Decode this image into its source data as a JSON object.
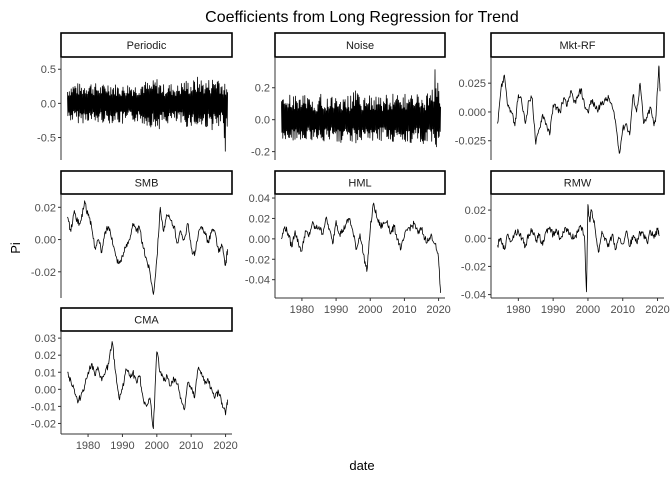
{
  "title": "Coefficients from Long Regression for Trend",
  "xlabel": "date",
  "ylabel": "Pi",
  "colors": {
    "line": "#000000",
    "axis": "#333333",
    "strip_border": "#000000",
    "background": "#ffffff"
  },
  "chart_data": {
    "type": "line",
    "facet": "wrap",
    "facet_cols": 3,
    "grid": false,
    "x_range": [
      1973,
      2021
    ],
    "x_ticks": [
      "1980",
      "1990",
      "2000",
      "2010",
      "2020"
    ],
    "panels": [
      {
        "name": "Periodic",
        "ylim": [
          -0.8,
          0.65
        ],
        "y_ticks": [
          "-0.5",
          "0.0",
          "0.5"
        ],
        "y_tick_values": [
          -0.5,
          0.0,
          0.5
        ],
        "x_axis_shown": false,
        "series": {
          "x": [
            1974,
            1976,
            1978,
            1980,
            1982,
            1984,
            1986,
            1988,
            1990,
            1992,
            1994,
            1996,
            1998,
            2000,
            2002,
            2004,
            2006,
            2008,
            2010,
            2012,
            2014,
            2016,
            2018,
            2019,
            2020,
            2020.6
          ],
          "high": [
            0.25,
            0.32,
            0.28,
            0.34,
            0.3,
            0.27,
            0.33,
            0.29,
            0.26,
            0.31,
            0.28,
            0.35,
            0.3,
            0.38,
            0.28,
            0.3,
            0.27,
            0.36,
            0.32,
            0.4,
            0.34,
            0.38,
            0.45,
            0.32,
            0.28,
            0.18
          ],
          "low": [
            -0.25,
            -0.28,
            -0.3,
            -0.26,
            -0.32,
            -0.28,
            -0.3,
            -0.27,
            -0.33,
            -0.29,
            -0.27,
            -0.31,
            -0.34,
            -0.4,
            -0.33,
            -0.29,
            -0.31,
            -0.36,
            -0.33,
            -0.38,
            -0.35,
            -0.39,
            -0.42,
            -0.36,
            -0.8,
            -0.2
          ]
        }
      },
      {
        "name": "Noise",
        "ylim": [
          -0.24,
          0.38
        ],
        "y_ticks": [
          "-0.2",
          "0.0",
          "0.2"
        ],
        "y_tick_values": [
          -0.2,
          0.0,
          0.2
        ],
        "x_axis_shown": false,
        "series": {
          "x": [
            1974,
            1976,
            1978,
            1980,
            1982,
            1984,
            1986,
            1988,
            1990,
            1992,
            1994,
            1996,
            1998,
            2000,
            2002,
            2004,
            2006,
            2008,
            2010,
            2012,
            2014,
            2016,
            2018,
            2019,
            2020,
            2020.6
          ],
          "high": [
            0.14,
            0.16,
            0.15,
            0.18,
            0.14,
            0.13,
            0.17,
            0.15,
            0.16,
            0.14,
            0.15,
            0.19,
            0.15,
            0.16,
            0.14,
            0.15,
            0.16,
            0.18,
            0.16,
            0.15,
            0.17,
            0.16,
            0.18,
            0.35,
            0.2,
            0.12
          ],
          "low": [
            -0.12,
            -0.14,
            -0.13,
            -0.15,
            -0.12,
            -0.14,
            -0.16,
            -0.13,
            -0.14,
            -0.15,
            -0.13,
            -0.15,
            -0.14,
            -0.17,
            -0.14,
            -0.13,
            -0.15,
            -0.16,
            -0.14,
            -0.15,
            -0.14,
            -0.16,
            -0.17,
            -0.15,
            -0.22,
            -0.1
          ]
        }
      },
      {
        "name": "Mkt-RF",
        "ylim": [
          -0.04,
          0.046
        ],
        "y_ticks": [
          "-0.025",
          "0.000",
          "0.025"
        ],
        "y_tick_values": [
          -0.025,
          0.0,
          0.025
        ],
        "x_axis_shown": false,
        "series": {
          "x": [
            1974,
            1975,
            1976,
            1977,
            1978,
            1979,
            1980,
            1981,
            1982,
            1983,
            1984,
            1985,
            1986,
            1987,
            1988,
            1989,
            1990,
            1991,
            1992,
            1993,
            1994,
            1995,
            1996,
            1997,
            1998,
            1999,
            2000,
            2001,
            2002,
            2003,
            2004,
            2005,
            2006,
            2007,
            2008,
            2009,
            2010,
            2011,
            2012,
            2013,
            2014,
            2015,
            2016,
            2017,
            2018,
            2019,
            2019.5,
            2020,
            2020.4,
            2020.7
          ],
          "y": [
            -0.01,
            0.02,
            0.032,
            0.005,
            0.0,
            -0.012,
            0.015,
            0.008,
            -0.01,
            0.01,
            0.012,
            -0.028,
            -0.015,
            -0.002,
            -0.01,
            -0.02,
            0.006,
            0.004,
            0.0,
            0.012,
            0.005,
            0.018,
            0.008,
            0.012,
            0.02,
            0.006,
            0.0,
            0.01,
            0.005,
            0.002,
            0.008,
            0.01,
            0.012,
            0.004,
            -0.01,
            -0.036,
            -0.015,
            -0.01,
            -0.02,
            0.015,
            0.0,
            0.025,
            -0.01,
            -0.005,
            0.004,
            -0.012,
            -0.005,
            0.02,
            0.04,
            0.018
          ]
        }
      },
      {
        "name": "SMB",
        "ylim": [
          -0.035,
          0.027
        ],
        "y_ticks": [
          "-0.02",
          "0.00",
          "0.02"
        ],
        "y_tick_values": [
          -0.02,
          0.0,
          0.02
        ],
        "x_axis_shown": false,
        "series": {
          "x": [
            1974,
            1975,
            1976,
            1977,
            1978,
            1979,
            1980,
            1981,
            1982,
            1983,
            1984,
            1985,
            1986,
            1987,
            1988,
            1989,
            1990,
            1991,
            1992,
            1993,
            1994,
            1995,
            1996,
            1997,
            1998,
            1999,
            2000,
            2001,
            2002,
            2003,
            2004,
            2005,
            2006,
            2007,
            2008,
            2009,
            2010,
            2011,
            2012,
            2013,
            2014,
            2015,
            2016,
            2017,
            2018,
            2019,
            2020,
            2020.6
          ],
          "y": [
            0.014,
            0.005,
            0.018,
            0.01,
            0.012,
            0.024,
            0.015,
            0.008,
            -0.005,
            0.0,
            -0.008,
            0.005,
            0.008,
            0.001,
            -0.01,
            -0.015,
            -0.01,
            -0.005,
            0.0,
            0.01,
            0.005,
            0.007,
            -0.005,
            -0.012,
            -0.02,
            -0.034,
            -0.012,
            0.02,
            0.005,
            0.015,
            0.012,
            0.008,
            -0.002,
            0.005,
            0.0,
            0.01,
            -0.005,
            -0.01,
            0.002,
            0.008,
            0.005,
            -0.002,
            0.006,
            0.004,
            -0.008,
            -0.004,
            -0.016,
            -0.006
          ]
        }
      },
      {
        "name": "HML",
        "ylim": [
          -0.056,
          0.042
        ],
        "y_ticks": [
          "-0.04",
          "-0.02",
          "0.00",
          "0.02",
          "0.04"
        ],
        "y_tick_values": [
          -0.04,
          -0.02,
          0.0,
          0.02,
          0.04
        ],
        "x_axis_shown": true,
        "series": {
          "x": [
            1974,
            1975,
            1976,
            1977,
            1978,
            1979,
            1980,
            1981,
            1982,
            1983,
            1984,
            1985,
            1986,
            1987,
            1988,
            1989,
            1990,
            1991,
            1992,
            1993,
            1994,
            1995,
            1996,
            1997,
            1998,
            1999,
            2000,
            2001,
            2002,
            2003,
            2004,
            2005,
            2006,
            2007,
            2008,
            2009,
            2010,
            2011,
            2012,
            2013,
            2014,
            2015,
            2016,
            2017,
            2018,
            2019,
            2020,
            2020.6
          ],
          "y": [
            0.0,
            0.012,
            0.005,
            -0.008,
            0.008,
            -0.005,
            -0.012,
            0.008,
            0.002,
            0.015,
            0.01,
            0.012,
            0.005,
            0.02,
            0.01,
            -0.005,
            0.018,
            0.005,
            0.008,
            0.015,
            0.02,
            0.005,
            -0.01,
            0.005,
            -0.015,
            -0.032,
            0.01,
            0.035,
            0.02,
            0.012,
            0.015,
            0.018,
            0.005,
            0.012,
            0.0,
            -0.01,
            0.002,
            0.01,
            0.012,
            0.015,
            0.005,
            0.01,
            0.0,
            -0.002,
            0.003,
            -0.005,
            -0.02,
            -0.053
          ]
        }
      },
      {
        "name": "RMW",
        "ylim": [
          -0.041,
          0.03
        ],
        "y_ticks": [
          "-0.04",
          "-0.02",
          "0.00",
          "0.02"
        ],
        "y_tick_values": [
          -0.04,
          -0.02,
          0.0,
          0.02
        ],
        "x_axis_shown": true,
        "series": {
          "x": [
            1974,
            1975,
            1976,
            1977,
            1978,
            1979,
            1980,
            1981,
            1982,
            1983,
            1984,
            1985,
            1986,
            1987,
            1988,
            1989,
            1990,
            1991,
            1992,
            1993,
            1994,
            1995,
            1996,
            1997,
            1998,
            1999,
            1999.6,
            2000,
            2000.5,
            2001,
            2002,
            2003,
            2004,
            2005,
            2006,
            2007,
            2008,
            2009,
            2010,
            2011,
            2012,
            2013,
            2014,
            2015,
            2016,
            2017,
            2018,
            2019,
            2020,
            2020.6
          ],
          "y": [
            -0.005,
            0.0,
            -0.008,
            0.003,
            -0.002,
            0.004,
            0.005,
            0.0,
            -0.006,
            0.003,
            0.006,
            -0.002,
            0.002,
            -0.005,
            0.005,
            0.008,
            0.002,
            0.006,
            0.0,
            0.004,
            0.007,
            0.003,
            0.0,
            0.004,
            0.008,
            0.001,
            -0.038,
            0.024,
            0.012,
            0.02,
            0.008,
            -0.01,
            0.005,
            0.0,
            -0.006,
            0.003,
            -0.008,
            0.0,
            -0.004,
            0.005,
            -0.006,
            0.002,
            -0.003,
            0.004,
            0.002,
            -0.003,
            0.005,
            0.0,
            0.006,
            0.002
          ]
        }
      },
      {
        "name": "CMA",
        "ylim": [
          -0.025,
          0.033
        ],
        "y_ticks": [
          "-0.02",
          "-0.01",
          "0.00",
          "0.01",
          "0.02",
          "0.03"
        ],
        "y_tick_values": [
          -0.02,
          -0.01,
          0.0,
          0.01,
          0.02,
          0.03
        ],
        "x_axis_shown": true,
        "series": {
          "x": [
            1974,
            1975,
            1976,
            1977,
            1978,
            1979,
            1980,
            1981,
            1982,
            1983,
            1984,
            1985,
            1986,
            1987,
            1988,
            1989,
            1990,
            1991,
            1992,
            1993,
            1994,
            1995,
            1996,
            1997,
            1998,
            1999,
            2000,
            2001,
            2002,
            2003,
            2004,
            2005,
            2006,
            2007,
            2008,
            2009,
            2010,
            2011,
            2012,
            2013,
            2014,
            2015,
            2016,
            2017,
            2018,
            2019,
            2020,
            2020.6
          ],
          "y": [
            0.01,
            0.005,
            0.0,
            -0.008,
            -0.003,
            0.002,
            0.01,
            0.015,
            0.008,
            0.012,
            0.005,
            0.01,
            0.015,
            0.028,
            0.01,
            -0.005,
            0.0,
            0.012,
            0.008,
            0.01,
            0.005,
            0.008,
            -0.005,
            -0.01,
            -0.005,
            -0.023,
            0.022,
            0.01,
            0.005,
            0.008,
            0.002,
            0.006,
            0.003,
            -0.005,
            -0.012,
            0.004,
            0.0,
            -0.005,
            0.012,
            0.01,
            0.003,
            0.005,
            0.0,
            -0.004,
            -0.002,
            -0.008,
            -0.015,
            -0.006
          ]
        }
      }
    ]
  }
}
